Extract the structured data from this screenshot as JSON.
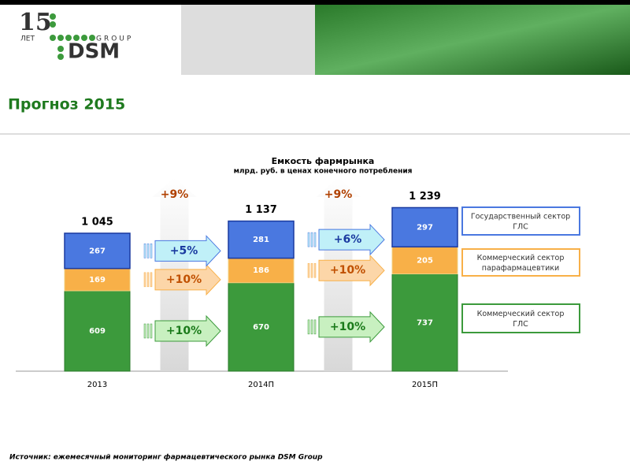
{
  "header": {
    "logo_number": "15",
    "logo_years": "ЛЕТ",
    "logo_group": "GROUP",
    "logo_brand": "DSM"
  },
  "page_title": "Прогноз 2015",
  "chart_data": {
    "type": "stacked_bar",
    "title": "Емкость фармрынка",
    "subtitle": "млрд. руб. в ценах конечного потребления",
    "categories": [
      "2013",
      "2014П",
      "2015П"
    ],
    "series": [
      {
        "name": "Коммерческий сектор ГЛС",
        "color": "#3c9a3c",
        "values": [
          609,
          670,
          737
        ]
      },
      {
        "name": "Коммерческий сектор парафармацевтики",
        "color": "#f8b048",
        "values": [
          169,
          186,
          205
        ]
      },
      {
        "name": "Государственный сектор ГЛС",
        "color": "#4a78e0",
        "values": [
          267,
          281,
          297
        ]
      }
    ],
    "totals": {
      "values": [
        1045,
        1137,
        1239
      ],
      "value_labels": [
        "1 045",
        "1 137",
        "1 239"
      ]
    },
    "growth": [
      {
        "total": "+9%",
        "series": [
          "+10%",
          "+10%",
          "+5%"
        ]
      },
      {
        "total": "+9%",
        "series": [
          "+10%",
          "+10%",
          "+6%"
        ]
      }
    ]
  },
  "source": "Источник: ежемесячный мониторинг фармацевтического рынка DSM Group"
}
